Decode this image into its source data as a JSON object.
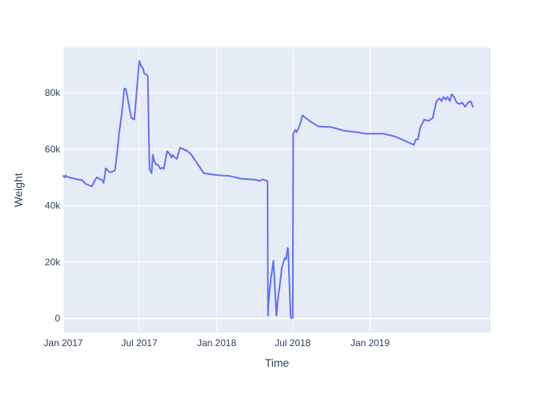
{
  "chart_data": {
    "type": "line",
    "title": "",
    "xlabel": "Time",
    "ylabel": "Weight",
    "xlim": [
      "2017-01-01",
      "2019-10-15"
    ],
    "ylim": [
      -5000,
      96000
    ],
    "x_ticks": [
      {
        "date": "2017-01-01",
        "label": "Jan 2017"
      },
      {
        "date": "2017-07-01",
        "label": "Jul 2017"
      },
      {
        "date": "2018-01-01",
        "label": "Jan 2018"
      },
      {
        "date": "2018-07-01",
        "label": "Jul 2018"
      },
      {
        "date": "2019-01-01",
        "label": "Jan 2019"
      }
    ],
    "y_ticks": [
      {
        "value": 0,
        "label": "0"
      },
      {
        "value": 20000,
        "label": "20k"
      },
      {
        "value": 40000,
        "label": "40k"
      },
      {
        "value": 60000,
        "label": "60k"
      },
      {
        "value": 80000,
        "label": "80k"
      }
    ],
    "grid": true,
    "legend": "none",
    "colors": {
      "plot_bg": "#e5ecf6",
      "grid": "#ffffff",
      "line": "#636efa",
      "text": "#2a3f5f"
    },
    "series": [
      {
        "name": "",
        "x": [
          "2017-01-01",
          "2017-01-04",
          "2017-01-06",
          "2017-01-10",
          "2017-01-20",
          "2017-02-01",
          "2017-02-15",
          "2017-02-22",
          "2017-02-26",
          "2017-03-10",
          "2017-03-18",
          "2017-03-22",
          "2017-03-28",
          "2017-04-02",
          "2017-04-06",
          "2017-04-07",
          "2017-04-12",
          "2017-04-20",
          "2017-04-24",
          "2017-04-28",
          "2017-05-04",
          "2017-05-10",
          "2017-05-14",
          "2017-05-16",
          "2017-05-22",
          "2017-05-26",
          "2017-05-30",
          "2017-06-12",
          "2017-06-19",
          "2017-06-30",
          "2017-07-01",
          "2017-07-05",
          "2017-07-10",
          "2017-07-12",
          "2017-07-16",
          "2017-07-20",
          "2017-07-21",
          "2017-07-25",
          "2017-07-28",
          "2017-07-30",
          "2017-08-02",
          "2017-08-06",
          "2017-08-10",
          "2017-08-14",
          "2017-08-20",
          "2017-08-26",
          "2017-08-28",
          "2017-09-05",
          "2017-09-10",
          "2017-09-16",
          "2017-09-18",
          "2017-09-20",
          "2017-09-28",
          "2017-10-06",
          "2017-10-14",
          "2017-10-18",
          "2017-10-20",
          "2017-11-01",
          "2017-12-01",
          "2018-01-01",
          "2018-02-01",
          "2018-03-01",
          "2018-04-01",
          "2018-04-10",
          "2018-04-14",
          "2018-04-20",
          "2018-05-02",
          "2018-05-03",
          "2018-05-04",
          "2018-05-07",
          "2018-05-10",
          "2018-05-16",
          "2018-05-23",
          "2018-05-24",
          "2018-05-26",
          "2018-06-02",
          "2018-06-05",
          "2018-06-12",
          "2018-06-15",
          "2018-06-19",
          "2018-06-20",
          "2018-06-26",
          "2018-07-01",
          "2018-07-02",
          "2018-07-07",
          "2018-07-10",
          "2018-07-15",
          "2018-07-20",
          "2018-07-24",
          "2018-08-01",
          "2018-08-15",
          "2018-09-01",
          "2018-10-01",
          "2018-11-01",
          "2018-12-01",
          "2018-12-20",
          "2019-01-01",
          "2019-02-01",
          "2019-03-01",
          "2019-04-01",
          "2019-04-15",
          "2019-04-20",
          "2019-04-25",
          "2019-04-30",
          "2019-05-05",
          "2019-05-10",
          "2019-05-20",
          "2019-05-30",
          "2019-06-08",
          "2019-06-15",
          "2019-06-20",
          "2019-06-25",
          "2019-06-30",
          "2019-07-04",
          "2019-07-10",
          "2019-07-14",
          "2019-07-20",
          "2019-07-26",
          "2019-08-02",
          "2019-08-08",
          "2019-08-15",
          "2019-08-22",
          "2019-08-28",
          "2019-09-03"
        ],
        "y": [
          50500,
          50000,
          50700,
          50200,
          49800,
          49400,
          49000,
          47800,
          47500,
          46800,
          49200,
          50000,
          49400,
          49200,
          48500,
          48000,
          53200,
          52000,
          51800,
          52000,
          52500,
          60000,
          66000,
          68000,
          75000,
          81500,
          81200,
          71000,
          70500,
          90000,
          91200,
          89500,
          88500,
          87000,
          86500,
          86200,
          85500,
          53000,
          52000,
          51500,
          58000,
          55500,
          54500,
          54500,
          53000,
          53500,
          53000,
          59300,
          58500,
          57000,
          58000,
          57500,
          56500,
          60500,
          60000,
          59500,
          59700,
          58200,
          51500,
          50800,
          50500,
          49500,
          49200,
          48900,
          48700,
          49300,
          48700,
          1000,
          5000,
          10000,
          14000,
          20500,
          1000,
          2000,
          6000,
          14000,
          18000,
          21500,
          21000,
          25000,
          24800,
          200,
          300,
          65500,
          66800,
          66000,
          67500,
          69500,
          72000,
          71000,
          69500,
          68000,
          67800,
          66500,
          66000,
          65500,
          65500,
          65500,
          64500,
          62500,
          61500,
          63500,
          63500,
          67500,
          69000,
          70500,
          70000,
          71000,
          77000,
          78000,
          77000,
          78500,
          77500,
          78500,
          77000,
          79500,
          78500,
          76500,
          76000,
          76500,
          75000,
          76500,
          77000,
          75000
        ]
      }
    ]
  }
}
